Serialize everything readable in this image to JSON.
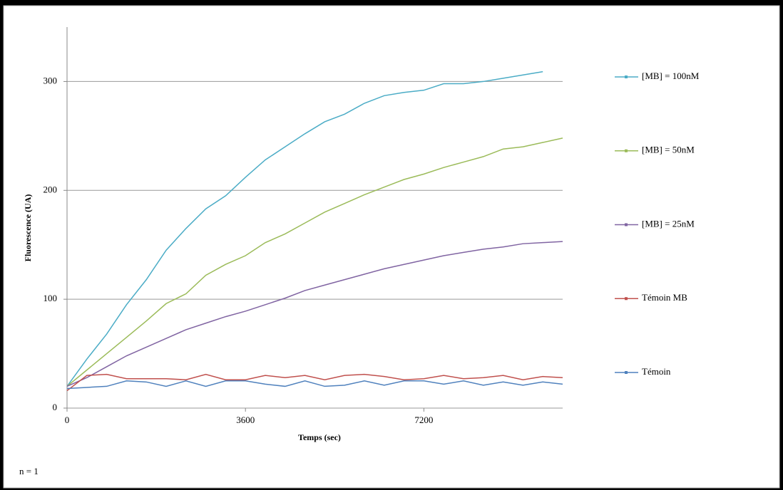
{
  "chart_data": {
    "type": "line",
    "xlabel": "Temps (sec)",
    "ylabel": "Fluorescence (UA)",
    "note": "n = 1",
    "x": [
      0,
      400,
      800,
      1200,
      1600,
      2000,
      2400,
      2800,
      3200,
      3600,
      4000,
      4400,
      4800,
      5200,
      5600,
      6000,
      6400,
      6800,
      7200,
      7600,
      8000,
      8400,
      8800,
      9200,
      9600,
      10000
    ],
    "xlim": [
      0,
      10000
    ],
    "xticks": [
      0,
      3600,
      7200
    ],
    "ylim": [
      0,
      350
    ],
    "yticks": [
      0,
      100,
      200,
      300
    ],
    "grid": true,
    "legend": "right",
    "series": [
      {
        "name": "[MB] = 100nM",
        "color": "#4bacc6",
        "values": [
          20,
          45,
          68,
          95,
          118,
          145,
          165,
          183,
          195,
          212,
          228,
          240,
          252,
          263,
          270,
          280,
          287,
          290,
          292,
          298,
          298,
          300,
          303,
          306,
          309,
          null
        ]
      },
      {
        "name": "[MB] = 50nM",
        "color": "#9bbb59",
        "values": [
          20,
          35,
          50,
          65,
          80,
          96,
          105,
          122,
          132,
          140,
          152,
          160,
          170,
          180,
          188,
          196,
          203,
          210,
          215,
          221,
          226,
          231,
          238,
          240,
          244,
          248
        ]
      },
      {
        "name": "[MB] = 25nM",
        "color": "#8064a2",
        "values": [
          20,
          28,
          38,
          48,
          56,
          64,
          72,
          78,
          84,
          89,
          95,
          101,
          108,
          113,
          118,
          123,
          128,
          132,
          136,
          140,
          143,
          146,
          148,
          151,
          152,
          153
        ]
      },
      {
        "name": "Témoin MB",
        "color": "#c0504d",
        "values": [
          16,
          30,
          31,
          27,
          27,
          27,
          26,
          31,
          26,
          26,
          30,
          28,
          30,
          26,
          30,
          31,
          29,
          26,
          27,
          30,
          27,
          28,
          30,
          26,
          29,
          28
        ]
      },
      {
        "name": "Témoin",
        "color": "#4f81bd",
        "values": [
          18,
          19,
          20,
          25,
          24,
          20,
          25,
          20,
          25,
          25,
          22,
          20,
          25,
          20,
          21,
          25,
          21,
          25,
          25,
          22,
          25,
          21,
          24,
          21,
          24,
          22
        ]
      }
    ]
  }
}
